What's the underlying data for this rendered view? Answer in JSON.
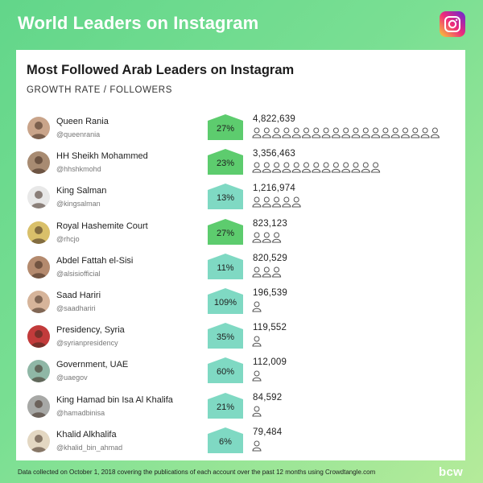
{
  "header": {
    "title": "World Leaders on Instagram",
    "logo_icon": "instagram-icon"
  },
  "card": {
    "title": "Most Followed Arab Leaders on Instagram",
    "subtitle": "GROWTH RATE / FOLLOWERS"
  },
  "colors": {
    "growth_high": "#5dcc6e",
    "growth_low": "#7fd9c3",
    "icon_stroke": "#555555"
  },
  "chart_data": {
    "type": "table",
    "title": "Most Followed Arab Leaders on Instagram",
    "columns": [
      "name",
      "handle",
      "growth_rate",
      "followers"
    ],
    "follower_icon_unit": 250000,
    "rows": [
      {
        "name": "Queen Rania",
        "handle": "@queenrania",
        "growth_label": "27%",
        "growth_rate": 27,
        "followers_label": "4,822,639",
        "followers": 4822639,
        "tier": "high"
      },
      {
        "name": "HH Sheikh Mohammed",
        "handle": "@hhshkmohd",
        "growth_label": "23%",
        "growth_rate": 23,
        "followers_label": "3,356,463",
        "followers": 3356463,
        "tier": "high"
      },
      {
        "name": "King Salman",
        "handle": "@kingsalman",
        "growth_label": "13%",
        "growth_rate": 13,
        "followers_label": "1,216,974",
        "followers": 1216974,
        "tier": "low"
      },
      {
        "name": "Royal Hashemite Court",
        "handle": "@rhcjo",
        "growth_label": "27%",
        "growth_rate": 27,
        "followers_label": "823,123",
        "followers": 823123,
        "tier": "high"
      },
      {
        "name": "Abdel Fattah el-Sisi",
        "handle": "@alsisiofficial",
        "growth_label": "11%",
        "growth_rate": 11,
        "followers_label": "820,529",
        "followers": 820529,
        "tier": "low"
      },
      {
        "name": "Saad Hariri",
        "handle": "@saadhariri",
        "growth_label": "109%",
        "growth_rate": 109,
        "followers_label": "196,539",
        "followers": 196539,
        "tier": "low"
      },
      {
        "name": "Presidency, Syria",
        "handle": "@syrianpresidency",
        "growth_label": "35%",
        "growth_rate": 35,
        "followers_label": "119,552",
        "followers": 119552,
        "tier": "low"
      },
      {
        "name": "Government, UAE",
        "handle": "@uaegov",
        "growth_label": "60%",
        "growth_rate": 60,
        "followers_label": "112,009",
        "followers": 112009,
        "tier": "low"
      },
      {
        "name": "King Hamad bin Isa Al Khalifa",
        "handle": "@hamadbinisa",
        "growth_label": "21%",
        "growth_rate": 21,
        "followers_label": "84,592",
        "followers": 84592,
        "tier": "low"
      },
      {
        "name": "Khalid Alkhalifa",
        "handle": "@khalid_bin_ahmad",
        "growth_label": "6%",
        "growth_rate": 6,
        "followers_label": "79,484",
        "followers": 79484,
        "tier": "low"
      }
    ]
  },
  "footer": {
    "note": "Data collected on October 1, 2018 covering the publications of each account over the past 12 months using Crowdtangle.com",
    "brand": "bcw"
  }
}
